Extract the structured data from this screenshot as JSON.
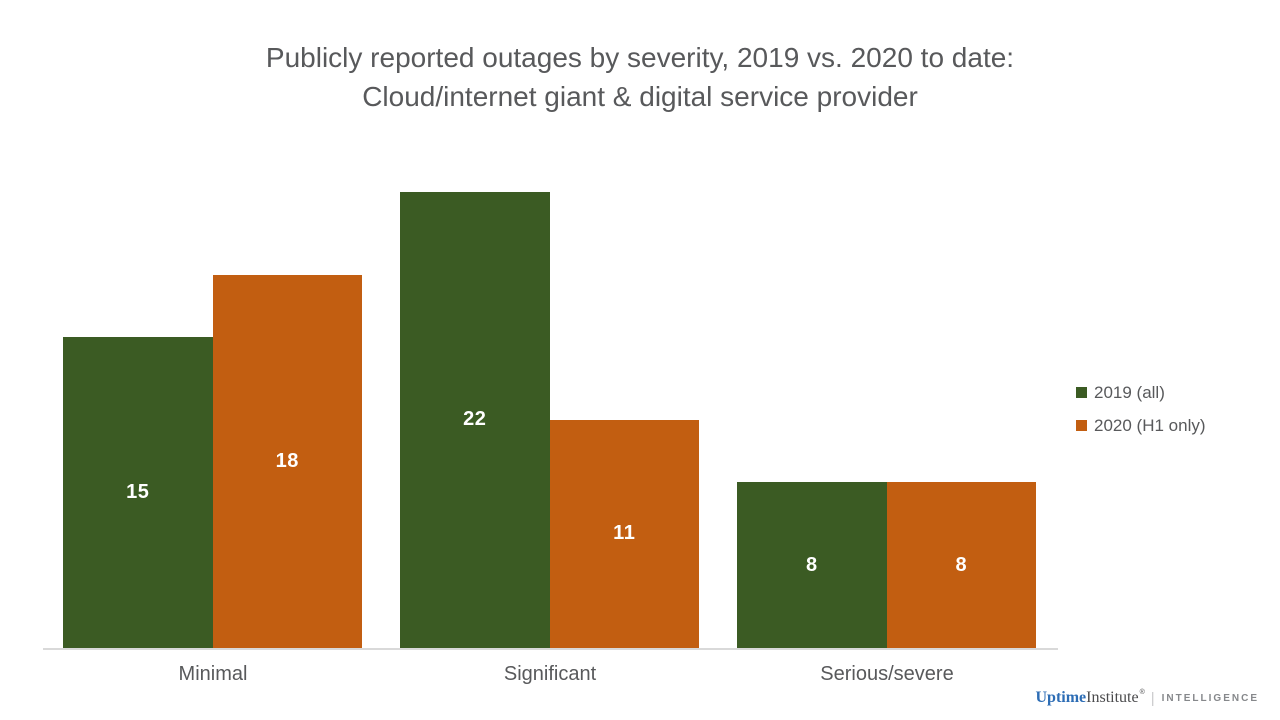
{
  "title": {
    "line1": "Publicly reported outages by severity, 2019 vs. 2020 to date:",
    "line2": "Cloud/internet giant & digital service provider"
  },
  "chart_data": {
    "type": "bar",
    "categories": [
      "Minimal",
      "Significant",
      "Serious/severe"
    ],
    "series": [
      {
        "name": "2019 (all)",
        "color": "#3b5b23",
        "values": [
          15,
          22,
          8
        ]
      },
      {
        "name": "2020 (H1 only)",
        "color": "#c25e11",
        "values": [
          18,
          11,
          8
        ]
      }
    ],
    "title": "Publicly reported outages by severity, 2019 vs. 2020 to date: Cloud/internet giant & digital service provider",
    "xlabel": "",
    "ylabel": "",
    "ylim": [
      0,
      24
    ],
    "grid": false,
    "y_axis_visible": false,
    "legend_position": "right",
    "data_labels": "value shown in white, centered inside each bar",
    "colors": {
      "axis_line": "#d9d9d9",
      "text": "#58595b",
      "label_text": "#ffffff"
    }
  },
  "footer": {
    "brand_part1": "Uptime",
    "brand_part2": "Institute",
    "registered_mark": "®",
    "separator": "|",
    "division": "INTELLIGENCE"
  }
}
